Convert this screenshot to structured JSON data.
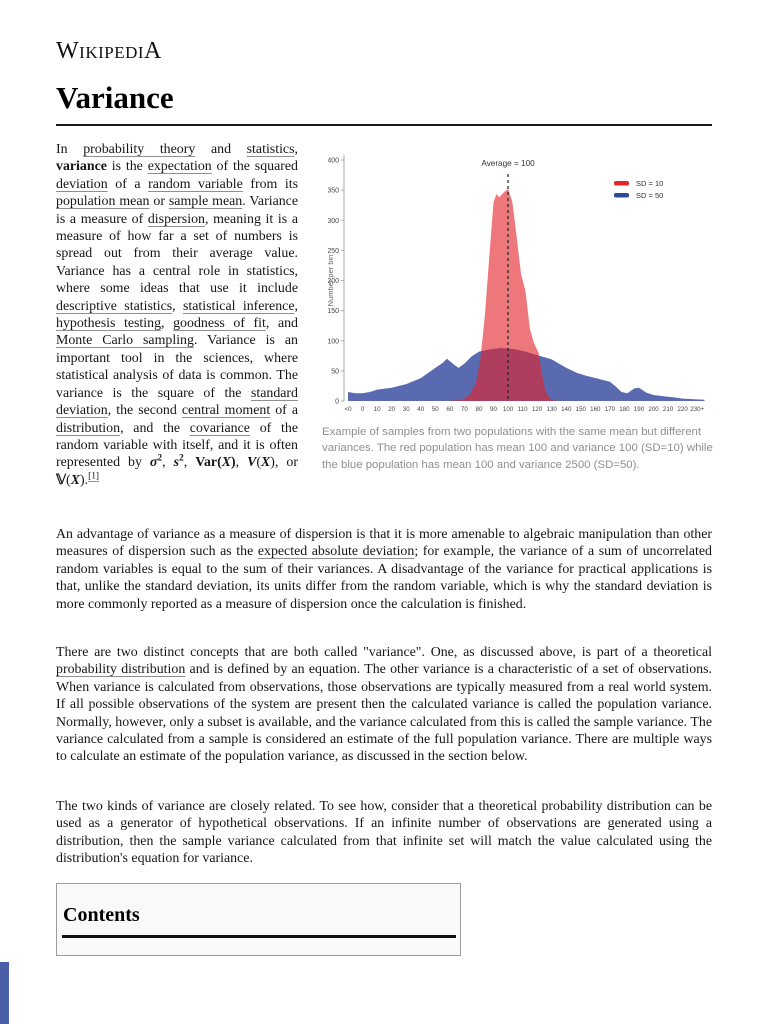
{
  "header": {
    "logo": "WikipediA",
    "title": "Variance"
  },
  "intro": {
    "segments": [
      {
        "t": "In "
      },
      {
        "t": "probability theory",
        "link": true
      },
      {
        "t": " and "
      },
      {
        "t": "statistics",
        "link": true
      },
      {
        "t": ", "
      },
      {
        "t": "variance",
        "b": true
      },
      {
        "t": " is the "
      },
      {
        "t": "expectation",
        "link": true
      },
      {
        "t": " of the squared "
      },
      {
        "t": "deviation",
        "link": true
      },
      {
        "t": " of a "
      },
      {
        "t": "random variable",
        "link": true
      },
      {
        "t": " from its "
      },
      {
        "t": "population mean",
        "link": true
      },
      {
        "t": " or "
      },
      {
        "t": "sample mean",
        "link": true
      },
      {
        "t": ". Variance is a measure of "
      },
      {
        "t": "dispersion",
        "link": true
      },
      {
        "t": ", meaning it is a measure of how far a set of numbers is spread out from their average value. Variance has a central role in statistics, where some ideas that use it include "
      },
      {
        "t": "descriptive statistics",
        "link": true
      },
      {
        "t": ", "
      },
      {
        "t": "statistical inference",
        "link": true
      },
      {
        "t": ", "
      },
      {
        "t": "hypothesis testing",
        "link": true
      },
      {
        "t": ", "
      },
      {
        "t": "goodness of fit",
        "link": true
      },
      {
        "t": ", and "
      },
      {
        "t": "Monte Carlo sampling",
        "link": true
      },
      {
        "t": ". Variance is an important tool in the sciences, where statistical analysis of data is common. The variance is the square of the "
      },
      {
        "t": "standard deviation",
        "link": true
      },
      {
        "t": ", the second "
      },
      {
        "t": "central moment",
        "link": true
      },
      {
        "t": " of a "
      },
      {
        "t": "distribution",
        "link": true
      },
      {
        "t": ", and the "
      },
      {
        "t": "covariance",
        "link": true
      },
      {
        "t": " of the random variable with itself, and it is often represented by "
      },
      {
        "t": "σ",
        "b": true,
        "i": true
      },
      {
        "t": "2",
        "sup": true,
        "b": true
      },
      {
        "t": ", "
      },
      {
        "t": "s",
        "b": true,
        "i": true
      },
      {
        "t": "2",
        "sup": true,
        "b": true
      },
      {
        "t": ", "
      },
      {
        "t": "Var(",
        "b": true
      },
      {
        "t": "X",
        "b": true,
        "i": true
      },
      {
        "t": ")",
        "b": true
      },
      {
        "t": ", "
      },
      {
        "t": "V",
        "b": true,
        "i": true
      },
      {
        "t": "("
      },
      {
        "t": "X",
        "b": true,
        "i": true
      },
      {
        "t": ")"
      },
      {
        "t": ", or "
      },
      {
        "t": "𝕍",
        "b": true
      },
      {
        "t": "("
      },
      {
        "t": "X",
        "b": true,
        "i": true
      },
      {
        "t": ")."
      },
      {
        "t": "[1]",
        "sup": true,
        "link": true
      }
    ]
  },
  "figure": {
    "caption": "Example of samples from two populations with the same mean but different variances. The red population has mean 100 and variance 100 (SD=10) while the blue population has mean 100 and variance 2500 (SD=50)."
  },
  "chart_data": {
    "type": "area",
    "title": "",
    "xlabel": "",
    "ylabel": "Number per bin",
    "categories": [
      "<0",
      "0",
      "10",
      "20",
      "30",
      "40",
      "50",
      "60",
      "70",
      "80",
      "90",
      "100",
      "110",
      "120",
      "130",
      "140",
      "150",
      "160",
      "170",
      "180",
      "190",
      "200",
      "210",
      "220",
      "230+"
    ],
    "ylim": [
      0,
      400
    ],
    "yticks": [
      0,
      50,
      100,
      150,
      200,
      250,
      300,
      350,
      400
    ],
    "grid": false,
    "legend_position": "top-right",
    "annotation": "Average = 100",
    "annotation_x": "100",
    "series": [
      {
        "name": "SD = 10",
        "color": "#e3242b",
        "fill": "#e3242b",
        "opacity": 0.62,
        "points": [
          [
            58,
            0
          ],
          [
            65,
            1
          ],
          [
            70,
            4
          ],
          [
            74,
            12
          ],
          [
            78,
            30
          ],
          [
            81,
            70
          ],
          [
            84,
            140
          ],
          [
            87,
            235
          ],
          [
            90,
            330
          ],
          [
            92,
            343
          ],
          [
            94,
            338
          ],
          [
            97,
            346
          ],
          [
            100,
            352
          ],
          [
            103,
            330
          ],
          [
            106,
            270
          ],
          [
            109,
            210
          ],
          [
            112,
            182
          ],
          [
            115,
            120
          ],
          [
            118,
            95
          ],
          [
            121,
            80
          ],
          [
            124,
            35
          ],
          [
            126,
            15
          ],
          [
            129,
            4
          ],
          [
            133,
            0
          ]
        ]
      },
      {
        "name": "SD = 50",
        "color": "#2d4b9b",
        "fill": "#5a6ab0",
        "opacity": 1,
        "points": [
          [
            -10,
            15
          ],
          [
            -5,
            13
          ],
          [
            0,
            13
          ],
          [
            5,
            15
          ],
          [
            10,
            19
          ],
          [
            20,
            22
          ],
          [
            30,
            28
          ],
          [
            40,
            38
          ],
          [
            50,
            55
          ],
          [
            55,
            63
          ],
          [
            58,
            70
          ],
          [
            63,
            60
          ],
          [
            66,
            55
          ],
          [
            70,
            62
          ],
          [
            75,
            74
          ],
          [
            80,
            82
          ],
          [
            88,
            86
          ],
          [
            95,
            88
          ],
          [
            105,
            86
          ],
          [
            112,
            82
          ],
          [
            120,
            76
          ],
          [
            126,
            72
          ],
          [
            130,
            69
          ],
          [
            140,
            55
          ],
          [
            148,
            46
          ],
          [
            155,
            41
          ],
          [
            162,
            37
          ],
          [
            170,
            32
          ],
          [
            174,
            24
          ],
          [
            178,
            15
          ],
          [
            182,
            13
          ],
          [
            187,
            21
          ],
          [
            190,
            22
          ],
          [
            195,
            14
          ],
          [
            200,
            10
          ],
          [
            207,
            8
          ],
          [
            214,
            6
          ],
          [
            220,
            4
          ],
          [
            228,
            3
          ],
          [
            235,
            2
          ]
        ]
      }
    ]
  },
  "paragraphs": {
    "p1": [
      {
        "t": "An advantage of variance as a measure of dispersion is that it is more amenable to algebraic manipulation than other measures of dispersion such as the "
      },
      {
        "t": "expected absolute deviation",
        "link": true
      },
      {
        "t": "; for example, the variance of a sum of uncorrelated random variables is equal to the sum of their variances. A disadvantage of the variance for practical applications is that, unlike the standard deviation, its units differ from the random variable, which is why the standard deviation is more commonly reported as a measure of dispersion once the calculation is finished."
      }
    ],
    "p2": [
      {
        "t": "There are two distinct concepts that are both called \"variance\". One, as discussed above, is part of a theoretical "
      },
      {
        "t": "probability distribution",
        "link": true
      },
      {
        "t": " and is defined by an equation. The other variance is a characteristic of a set of observations. When variance is calculated from observations, those observations are typically measured from a real world system. If all possible observations of the system are present then the calculated variance is called the population variance. Normally, however, only a subset is available, and the variance calculated from this is called the sample variance. The variance calculated from a sample is considered an estimate of the full population variance. There are multiple ways to calculate an estimate of the population variance, as discussed in the section below."
      }
    ],
    "p3": [
      {
        "t": "The two kinds of variance are closely related. To see how, consider that a theoretical probability distribution can be used as a generator of hypothetical observations. If an infinite number of observations are generated using a distribution, then the sample variance calculated from that infinite set will match the value calculated using the distribution's equation for variance."
      }
    ]
  },
  "contents": {
    "heading": "Contents"
  },
  "colors": {
    "page_bg": "#ffffff",
    "next_page_strip": "#4a5fa8",
    "caption_gray": "#8f8f8f"
  }
}
